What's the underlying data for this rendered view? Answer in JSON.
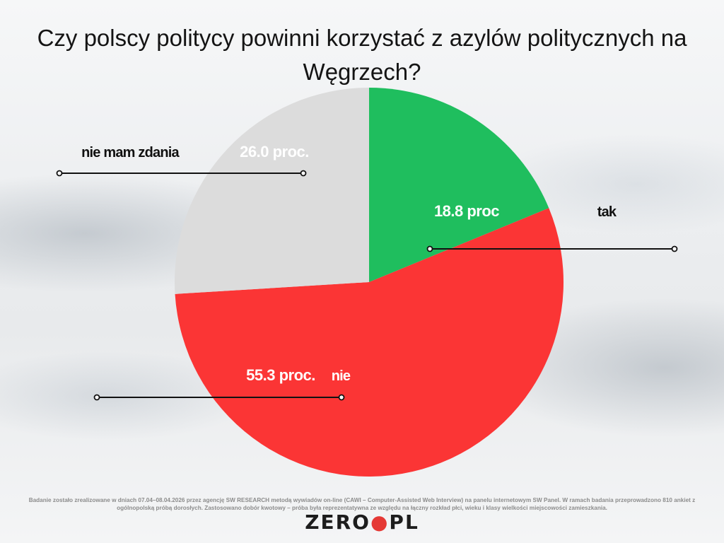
{
  "title": "Czy polscy politycy powinni korzystać z azylów politycznych na Węgrzech?",
  "chart_data": {
    "type": "pie",
    "slices": [
      {
        "category": "tak",
        "value": 18.8,
        "value_label": "18.8 proc",
        "color": "#1fbe5e"
      },
      {
        "category": "nie",
        "value": 55.3,
        "value_label": "55.3 proc.",
        "color": "#fb3535"
      },
      {
        "category": "nie mam zdania",
        "value": 26.0,
        "value_label": "26.0 proc.",
        "color": "#dcdcdc"
      }
    ],
    "start": "12 o'clock",
    "direction": "clockwise"
  },
  "footnote": "Badanie zostało zrealizowane w dniach 07.04–08.04.2026 przez agencję SW RESEARCH metodą wywiadów on-line (CAWI – Computer-Assisted Web Interview) na panelu internetowym SW Panel. W ramach badania przeprowadzono 810 ankiet z ogólnopolską próbą dorosłych. Zastosowano dobór kwotowy – próba była reprezentatywna ze względu na łączny rozkład płci, wieku i klasy wielkości miejscowości zamieszkania.",
  "logo": {
    "left": "ZERO",
    "dot": "●",
    "right": "PL"
  }
}
